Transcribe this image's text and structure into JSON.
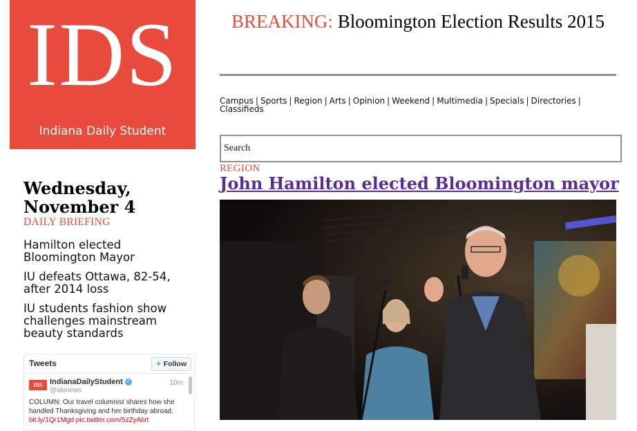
{
  "logo": {
    "mark": "IDS",
    "tagline": "Indiana Daily Student"
  },
  "breaking": {
    "label": "BREAKING:",
    "text": "Bloomington Election Results 2015"
  },
  "nav": {
    "items": [
      "Campus",
      "Sports",
      "Region",
      "Arts",
      "Opinion",
      "Weekend",
      "Multimedia",
      "Specials",
      "Directories",
      "Classifieds"
    ],
    "separator": "|"
  },
  "search": {
    "placeholder": "Search"
  },
  "sidebar": {
    "date": "Wednesday, November 4",
    "briefing_label": "DAILY BRIEFING",
    "briefings": [
      "Hamilton elected Bloomington Mayor",
      "IU defeats Ottawa, 82-54, after 2014 loss",
      "IU students fashion show challenges mainstream beauty standards"
    ]
  },
  "tweets": {
    "title": "Tweets",
    "follow_label": "Follow",
    "tweet": {
      "avatar_text": "IDS",
      "name": "IndianaDailyStudent",
      "handle": "@idsnews",
      "time": "10m",
      "text": "COLUMN: Our travel columnist shares how she handled Thanksgiving and her birthday abroad.",
      "link": "bit.ly/1Qr1Mgd pic.twitter.com/5zZyAtirt"
    }
  },
  "article": {
    "section": "REGION",
    "headline": "John Hamilton elected Bloomington mayor"
  },
  "colors": {
    "brand": "#e84b3c",
    "headline_link": "#5c2d91",
    "rule": "#8e8e8e"
  }
}
